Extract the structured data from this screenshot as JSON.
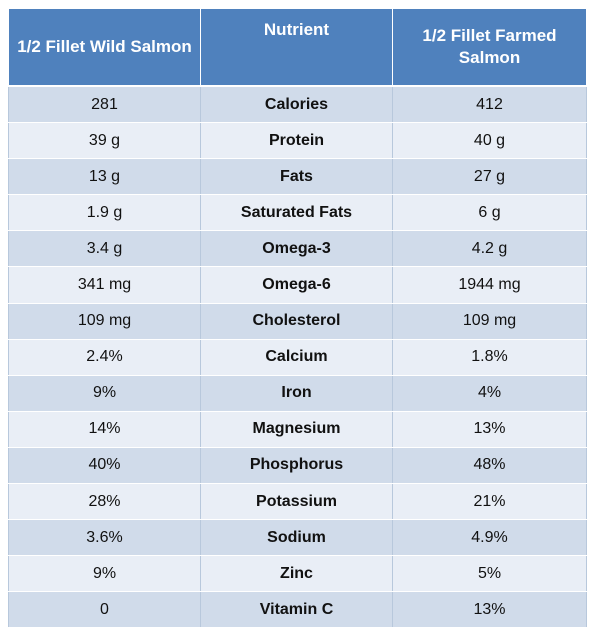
{
  "table": {
    "headers": [
      "1/2 Fillet Wild Salmon",
      "Nutrient",
      "1/2 Fillet Farmed Salmon"
    ],
    "rows": [
      {
        "wild": "281",
        "nutrient": "Calories",
        "farmed": "412"
      },
      {
        "wild": "39 g",
        "nutrient": "Protein",
        "farmed": "40 g"
      },
      {
        "wild": "13 g",
        "nutrient": "Fats",
        "farmed": "27 g"
      },
      {
        "wild": "1.9 g",
        "nutrient": "Saturated Fats",
        "farmed": "6 g"
      },
      {
        "wild": "3.4 g",
        "nutrient": "Omega-3",
        "farmed": "4.2 g"
      },
      {
        "wild": "341 mg",
        "nutrient": "Omega-6",
        "farmed": "1944 mg"
      },
      {
        "wild": "109 mg",
        "nutrient": "Cholesterol",
        "farmed": "109 mg"
      },
      {
        "wild": "2.4%",
        "nutrient": "Calcium",
        "farmed": "1.8%"
      },
      {
        "wild": "9%",
        "nutrient": "Iron",
        "farmed": "4%"
      },
      {
        "wild": "14%",
        "nutrient": "Magnesium",
        "farmed": "13%"
      },
      {
        "wild": "40%",
        "nutrient": "Phosphorus",
        "farmed": "48%"
      },
      {
        "wild": "28%",
        "nutrient": "Potassium",
        "farmed": "21%"
      },
      {
        "wild": "3.6%",
        "nutrient": "Sodium",
        "farmed": "4.9%"
      },
      {
        "wild": "9%",
        "nutrient": "Zinc",
        "farmed": "5%"
      },
      {
        "wild": "0",
        "nutrient": "Vitamin C",
        "farmed": "13%"
      }
    ]
  },
  "colors": {
    "header_bg": "#4f81bd",
    "row_odd_bg": "#d0dbea",
    "row_even_bg": "#e9eef6"
  }
}
